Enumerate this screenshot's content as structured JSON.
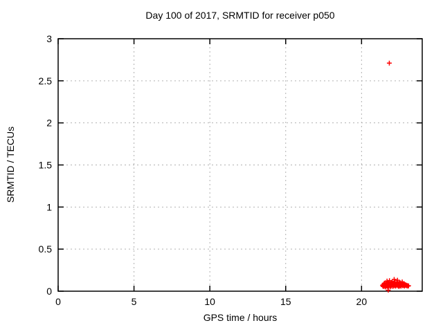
{
  "chart_data": {
    "type": "scatter",
    "title": "Day 100 of 2017, SRMTID for receiver p050",
    "xlabel": "GPS time / hours",
    "ylabel": "SRMTID / TECUs",
    "xlim": [
      0,
      24
    ],
    "ylim": [
      0,
      3
    ],
    "xticks": [
      0,
      5,
      10,
      15,
      20
    ],
    "xtick_labels": [
      "0",
      "5",
      "10",
      "15",
      "20"
    ],
    "yticks": [
      0,
      0.5,
      1,
      1.5,
      2,
      2.5,
      3
    ],
    "ytick_labels": [
      "0",
      "0.5",
      "1",
      "1.5",
      "2",
      "2.5",
      "3"
    ],
    "grid": true,
    "legend": "none",
    "marker": "plus",
    "colors": {
      "marker": "#ff0000",
      "grid": "#b0b0b0",
      "axis": "#000000",
      "text": "#000000",
      "background": "#ffffff"
    },
    "series": [
      {
        "name": "SRMTID",
        "color": "#ff0000",
        "points": [
          [
            21.38,
            0.07
          ],
          [
            21.42,
            0.055
          ],
          [
            21.45,
            0.08
          ],
          [
            21.48,
            0.06
          ],
          [
            21.5,
            0.095
          ],
          [
            21.53,
            0.07
          ],
          [
            21.56,
            0.05
          ],
          [
            21.58,
            0.1
          ],
          [
            21.6,
            0.075
          ],
          [
            21.62,
            0.06
          ],
          [
            21.65,
            0.09
          ],
          [
            21.67,
            0.065
          ],
          [
            21.68,
            0.12
          ],
          [
            21.7,
            0.08
          ],
          [
            21.72,
            0.055
          ],
          [
            21.74,
            0.095
          ],
          [
            21.76,
            0.07
          ],
          [
            21.78,
            0.06
          ],
          [
            21.8,
            0.105
          ],
          [
            21.82,
            0.075
          ],
          [
            21.84,
            0.125
          ],
          [
            21.86,
            0.06
          ],
          [
            21.88,
            0.085
          ],
          [
            21.9,
            0.07
          ],
          [
            21.92,
            0.055
          ],
          [
            21.94,
            0.1
          ],
          [
            21.96,
            0.08
          ],
          [
            21.98,
            0.065
          ],
          [
            22.0,
            0.09
          ],
          [
            22.02,
            0.11
          ],
          [
            22.05,
            0.075
          ],
          [
            22.07,
            0.055
          ],
          [
            22.09,
            0.095
          ],
          [
            22.11,
            0.07
          ],
          [
            22.13,
            0.085
          ],
          [
            22.15,
            0.14
          ],
          [
            22.17,
            0.065
          ],
          [
            22.19,
            0.09
          ],
          [
            22.21,
            0.105
          ],
          [
            22.23,
            0.075
          ],
          [
            22.25,
            0.06
          ],
          [
            22.28,
            0.085
          ],
          [
            22.3,
            0.07
          ],
          [
            22.32,
            0.1
          ],
          [
            22.35,
            0.08
          ],
          [
            22.37,
            0.13
          ],
          [
            22.39,
            0.065
          ],
          [
            22.41,
            0.09
          ],
          [
            22.44,
            0.075
          ],
          [
            22.46,
            0.055
          ],
          [
            22.48,
            0.095
          ],
          [
            22.5,
            0.08
          ],
          [
            22.53,
            0.065
          ],
          [
            22.55,
            0.1
          ],
          [
            22.57,
            0.085
          ],
          [
            22.6,
            0.06
          ],
          [
            22.62,
            0.09
          ],
          [
            22.65,
            0.075
          ],
          [
            22.68,
            0.11
          ],
          [
            22.7,
            0.065
          ],
          [
            22.73,
            0.085
          ],
          [
            22.76,
            0.07
          ],
          [
            22.79,
            0.09
          ],
          [
            22.82,
            0.06
          ],
          [
            22.85,
            0.08
          ],
          [
            22.88,
            0.07
          ],
          [
            22.92,
            0.075
          ],
          [
            22.96,
            0.065
          ],
          [
            23.0,
            0.07
          ],
          [
            23.05,
            0.06
          ],
          [
            23.1,
            0.065
          ],
          [
            21.76,
            0.012
          ],
          [
            21.83,
            2.71
          ]
        ]
      }
    ]
  }
}
